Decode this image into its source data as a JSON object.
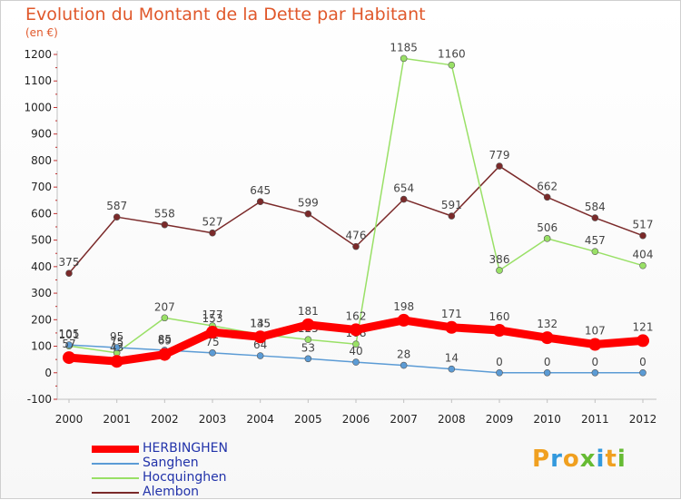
{
  "title": "Evolution du Montant de la Dette par Habitant",
  "unit_label": "(en €)",
  "logo": {
    "text": "Proxiti"
  },
  "chart_data": {
    "type": "line",
    "x": [
      "2000",
      "2001",
      "2002",
      "2003",
      "2004",
      "2005",
      "2006",
      "2007",
      "2008",
      "2009",
      "2010",
      "2011",
      "2012"
    ],
    "ylim": [
      -100,
      1200
    ],
    "yticks": [
      -100,
      0,
      100,
      200,
      300,
      400,
      500,
      600,
      700,
      800,
      900,
      1000,
      1100,
      1200
    ],
    "grid": false,
    "legend_position": "bottom-left",
    "series": [
      {
        "name": "HERBINGHEN",
        "color": "#ff0000",
        "values": [
          57,
          43,
          69,
          153,
          135,
          181,
          162,
          198,
          171,
          160,
          132,
          107,
          121
        ]
      },
      {
        "name": "Sanghen",
        "color": "#5b9bd5",
        "values": [
          105,
          95,
          85,
          75,
          64,
          53,
          40,
          28,
          14,
          0,
          0,
          0,
          0
        ]
      },
      {
        "name": "Hocquinghen",
        "color": "#99e066",
        "values": [
          101,
          75,
          207,
          177,
          145,
          125,
          108,
          1185,
          1160,
          386,
          506,
          457,
          404
        ]
      },
      {
        "name": "Alembon",
        "color": "#7b2a2a",
        "values": [
          375,
          587,
          558,
          527,
          645,
          599,
          476,
          654,
          591,
          779,
          662,
          584,
          517
        ]
      }
    ]
  }
}
